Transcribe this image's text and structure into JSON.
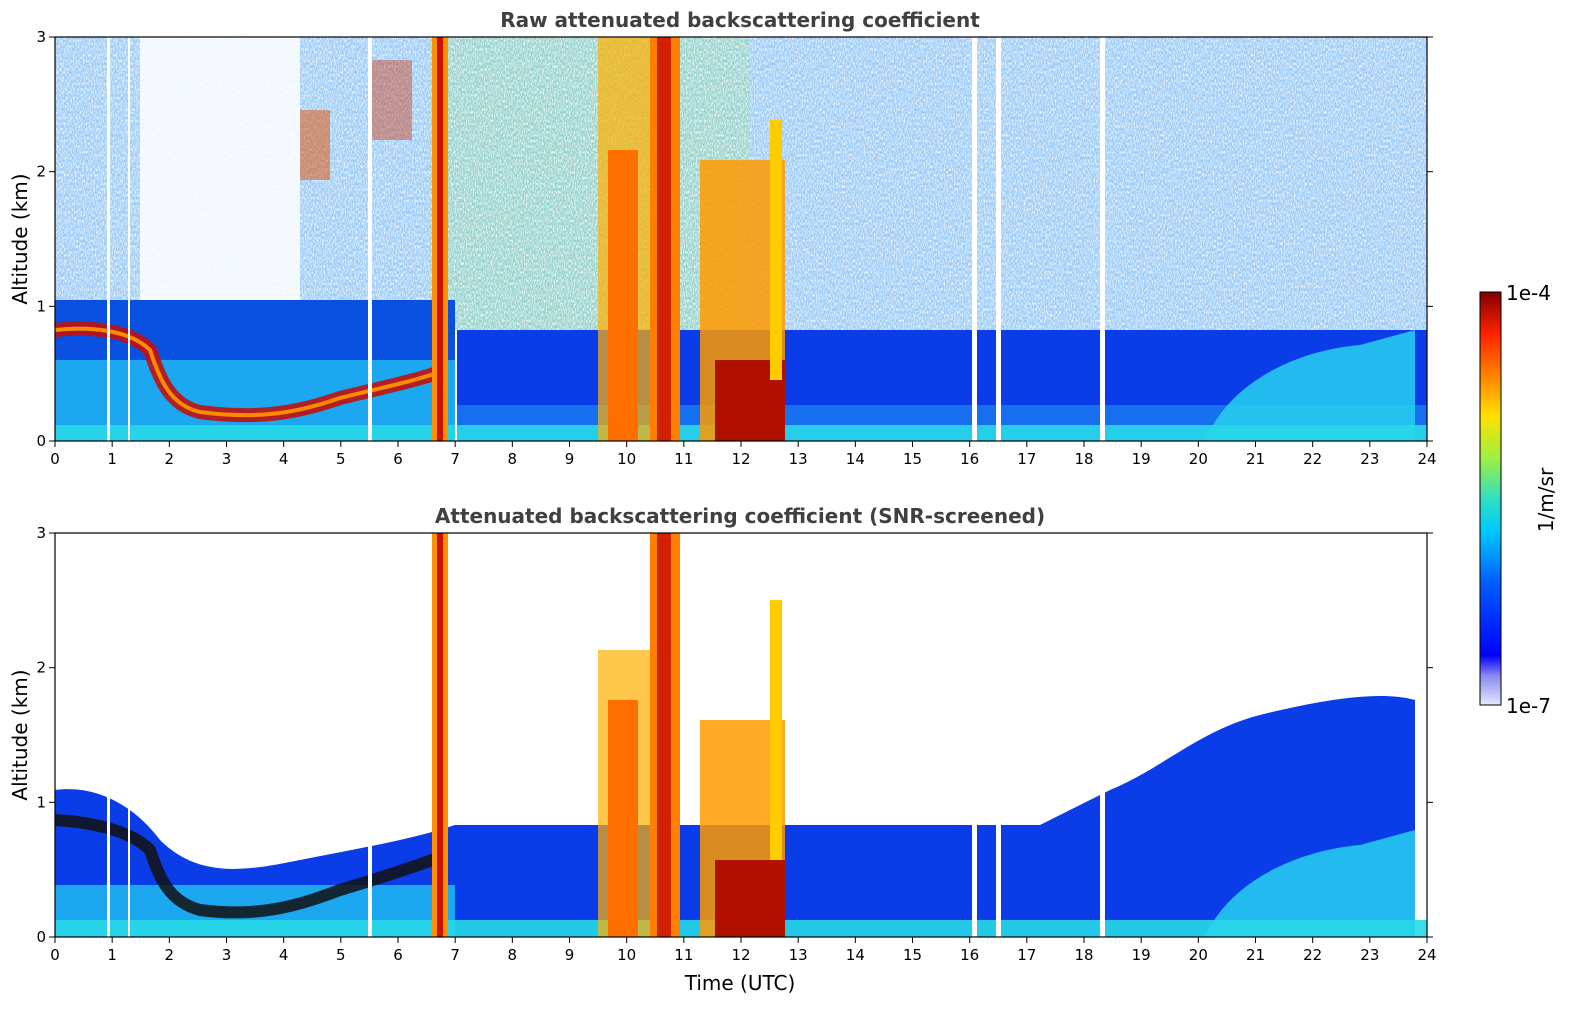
{
  "chart_data": [
    {
      "type": "heatmap",
      "title": "Raw attenuated backscattering coefficient",
      "xlabel": "",
      "ylabel": "Altitude (km)",
      "xlim": [
        0,
        24
      ],
      "ylim": [
        0,
        3
      ],
      "x_ticks": [
        "0",
        "1",
        "2",
        "3",
        "4",
        "5",
        "6",
        "7",
        "8",
        "9",
        "10",
        "11",
        "12",
        "13",
        "14",
        "15",
        "16",
        "17",
        "18",
        "19",
        "20",
        "21",
        "22",
        "23",
        "24"
      ],
      "y_ticks": [
        "0",
        "1",
        "2",
        "3"
      ],
      "grid": false,
      "colorscale": "jet (log10)",
      "features": {
        "boundary_layer_top_km": [
          [
            0,
            0.8
          ],
          [
            0.5,
            0.85
          ],
          [
            1.0,
            0.82
          ],
          [
            1.5,
            0.7
          ],
          [
            2.0,
            0.25
          ],
          [
            3.0,
            0.2
          ],
          [
            4.0,
            0.25
          ],
          [
            5.0,
            0.3
          ],
          [
            6.0,
            0.4
          ],
          [
            6.8,
            0.5
          ]
        ],
        "thick_cloud_bands_utc": [
          [
            6.6,
            6.9
          ],
          [
            9.7,
            10.3
          ],
          [
            10.4,
            10.9
          ],
          [
            11.3,
            12.6
          ]
        ],
        "elevated_aerosol_layer_km": [
          [
            19.5,
            0.35
          ],
          [
            21,
            0.6
          ],
          [
            22,
            0.5
          ],
          [
            23,
            0.6
          ],
          [
            23.8,
            0.4
          ]
        ],
        "data_gaps_utc": [
          0.92,
          1.3,
          5.5,
          16.05,
          16.5,
          18.3
        ]
      }
    },
    {
      "type": "heatmap",
      "title": "Attenuated backscattering coefficient (SNR-screened)",
      "xlabel": "Time (UTC)",
      "ylabel": "Altitude (km)",
      "xlim": [
        0,
        24
      ],
      "ylim": [
        0,
        3
      ],
      "x_ticks": [
        "0",
        "1",
        "2",
        "3",
        "4",
        "5",
        "6",
        "7",
        "8",
        "9",
        "10",
        "11",
        "12",
        "13",
        "14",
        "15",
        "16",
        "17",
        "18",
        "19",
        "20",
        "21",
        "22",
        "23",
        "24"
      ],
      "y_ticks": [
        "0",
        "1",
        "2",
        "3"
      ],
      "grid": false,
      "colorscale": "jet (log10)",
      "features": {
        "screened_upper_limit_km": [
          [
            0,
            1.1
          ],
          [
            7,
            0.9
          ],
          [
            13,
            1.0
          ],
          [
            17,
            1.0
          ],
          [
            19,
            1.2
          ],
          [
            21,
            1.6
          ],
          [
            23,
            1.8
          ],
          [
            23.8,
            1.6
          ]
        ]
      }
    }
  ],
  "colorbar": {
    "max_label": "1e-4",
    "min_label": "1e-7",
    "unit_label": "1/m/sr",
    "range": [
      1e-07,
      0.0001
    ],
    "scale": "log"
  }
}
